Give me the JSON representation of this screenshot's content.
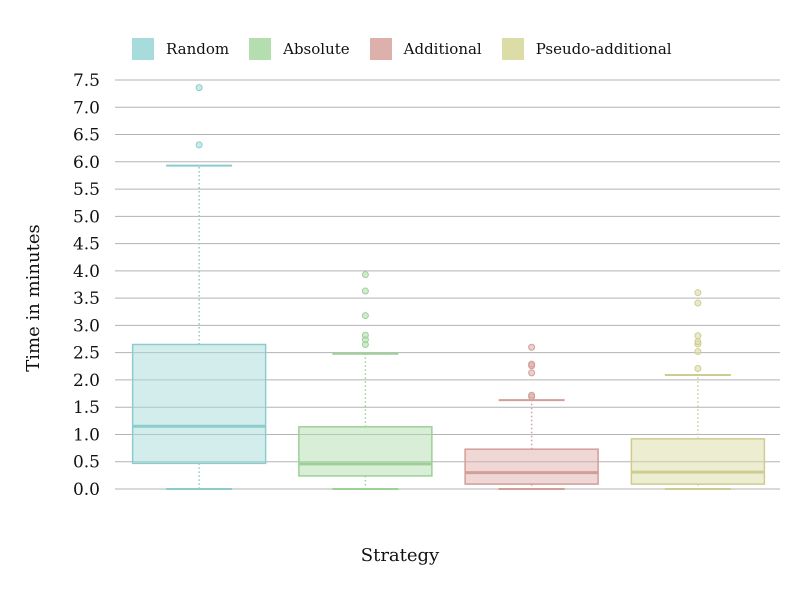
{
  "chart_data": {
    "type": "box",
    "xlabel": "Strategy",
    "ylabel": "Time in minutes",
    "ylim": [
      0,
      7.5
    ],
    "yticks": [
      "0.0",
      "0.5",
      "1.0",
      "1.5",
      "2.0",
      "2.5",
      "3.0",
      "3.5",
      "4.0",
      "4.5",
      "5.0",
      "5.5",
      "6.0",
      "6.5",
      "7.0",
      "7.5"
    ],
    "grid": true,
    "legend_position": "top-left",
    "series": [
      {
        "name": "Random",
        "color": "#a8dcdc",
        "stroke": "#8ccccc",
        "min": 0.0,
        "q1": 0.47,
        "median": 1.15,
        "q3": 2.65,
        "max": 5.93,
        "outliers": [
          6.31,
          7.36
        ]
      },
      {
        "name": "Absolute",
        "color": "#b4ddb0",
        "stroke": "#9cd196",
        "min": 0.0,
        "q1": 0.24,
        "median": 0.46,
        "q3": 1.14,
        "max": 2.48,
        "outliers": [
          2.65,
          2.74,
          2.82,
          3.18,
          3.63,
          3.93
        ]
      },
      {
        "name": "Additional",
        "color": "#deb0ab",
        "stroke": "#d29e98",
        "min": 0.0,
        "q1": 0.09,
        "median": 0.3,
        "q3": 0.73,
        "max": 1.63,
        "outliers": [
          1.69,
          1.72,
          2.13,
          2.26,
          2.29,
          2.6
        ]
      },
      {
        "name": "Pseudo-additional",
        "color": "#dcdca6",
        "stroke": "#cdcd92",
        "min": 0.0,
        "q1": 0.09,
        "median": 0.31,
        "q3": 0.92,
        "max": 2.09,
        "outliers": [
          2.21,
          2.52,
          2.66,
          2.7,
          2.81,
          3.41,
          3.6
        ]
      }
    ]
  }
}
